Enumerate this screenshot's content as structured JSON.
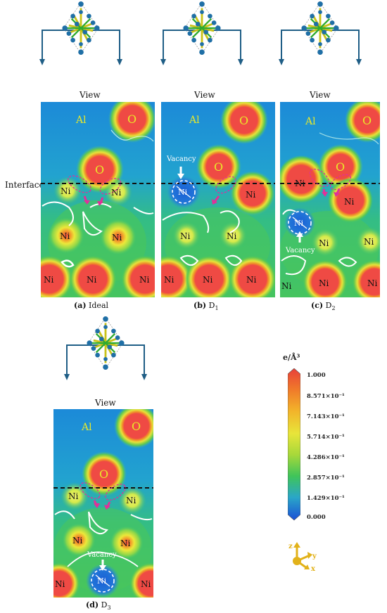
{
  "view_label": "View",
  "interface_label": "Interface",
  "vacancy_label": "Vacancy",
  "atoms": {
    "al": "Al",
    "o": "O",
    "ni": "Ni"
  },
  "panels": [
    {
      "id": "a",
      "letter": "(a)",
      "name": "Ideal",
      "sub": ""
    },
    {
      "id": "b",
      "letter": "(b)",
      "name": "D",
      "sub": "1"
    },
    {
      "id": "c",
      "letter": "(c)",
      "name": "D",
      "sub": "2"
    },
    {
      "id": "d",
      "letter": "(d)",
      "name": "D",
      "sub": "3"
    }
  ],
  "colorbar": {
    "title": "e/Å³",
    "ticks": [
      "1.000",
      "8.571×10⁻¹",
      "7.143×10⁻¹",
      "5.714×10⁻¹",
      "4.286×10⁻¹",
      "2.857×10⁻¹",
      "1.429×10⁻¹",
      "0.000"
    ]
  },
  "axes": {
    "z": "z",
    "y": "y",
    "x": "x"
  },
  "colors": {
    "background_field": "#1f9bd6",
    "low": "#1a5fd6",
    "mid": "#3fc46a",
    "high": "#e4e63a",
    "atom_core": "#ef4a44",
    "label_text": "#e8e82a",
    "arrow_magenta": "#e0309a",
    "interface_dash": "#111111"
  }
}
